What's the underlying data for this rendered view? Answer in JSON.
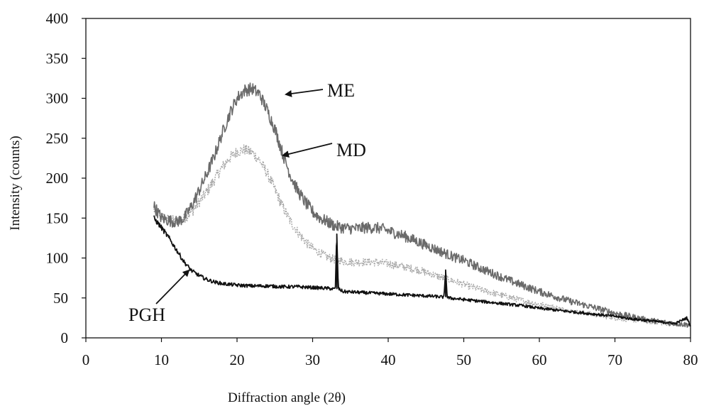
{
  "chart_data": {
    "type": "line",
    "title": "",
    "xlabel": "Diffraction angle (2θ)",
    "ylabel": "Intensity (counts)",
    "xlim": [
      0,
      80
    ],
    "ylim": [
      0,
      400
    ],
    "xticks": [
      0,
      10,
      20,
      30,
      40,
      50,
      60,
      70,
      80
    ],
    "yticks": [
      0,
      50,
      100,
      150,
      200,
      250,
      300,
      350,
      400
    ],
    "x_tick_labels": [
      "0",
      "10",
      "20",
      "30",
      "40",
      "50",
      "60",
      "70",
      "80"
    ],
    "y_tick_labels": [
      "0",
      "50",
      "100",
      "150",
      "200",
      "250",
      "300",
      "350",
      "400"
    ],
    "grid": false,
    "legend": "none",
    "series": [
      {
        "name": "ME",
        "color": "#6a6a6a",
        "style": "noisy-solid",
        "x": [
          9,
          10,
          11,
          12,
          13,
          14,
          15,
          16,
          17,
          18,
          19,
          20,
          21,
          22,
          23,
          24,
          25,
          26,
          27,
          28,
          29,
          30,
          31,
          32,
          33,
          34,
          35,
          36,
          37,
          38,
          39,
          40,
          41,
          42,
          43,
          44,
          45,
          46,
          47,
          48,
          49,
          50,
          52,
          54,
          56,
          58,
          60,
          62,
          64,
          66,
          68,
          70,
          72,
          74,
          76,
          78,
          80
        ],
        "y": [
          165,
          150,
          147,
          145,
          150,
          165,
          185,
          205,
          228,
          255,
          280,
          300,
          310,
          312,
          305,
          285,
          262,
          232,
          205,
          185,
          170,
          158,
          150,
          145,
          140,
          138,
          137,
          137,
          138,
          138,
          137,
          134,
          131,
          128,
          124,
          120,
          116,
          112,
          108,
          104,
          100,
          97,
          88,
          80,
          72,
          65,
          58,
          52,
          46,
          41,
          36,
          31,
          27,
          23,
          20,
          18,
          16
        ]
      },
      {
        "name": "MD",
        "color": "#a8a8a8",
        "style": "noisy-dotted",
        "x": [
          9,
          10,
          11,
          12,
          13,
          14,
          15,
          16,
          17,
          18,
          19,
          20,
          21,
          22,
          23,
          24,
          25,
          26,
          27,
          28,
          29,
          30,
          31,
          32,
          33,
          34,
          35,
          36,
          37,
          38,
          39,
          40,
          41,
          42,
          43,
          44,
          45,
          46,
          47,
          48,
          49,
          50,
          52,
          54,
          56,
          58,
          60,
          62,
          64,
          66,
          68,
          70,
          72,
          74,
          76,
          78,
          80
        ],
        "y": [
          160,
          152,
          148,
          146,
          150,
          158,
          170,
          183,
          198,
          213,
          225,
          233,
          236,
          232,
          222,
          206,
          186,
          165,
          147,
          133,
          121,
          112,
          106,
          101,
          98,
          96,
          95,
          95,
          95,
          95,
          94,
          93,
          91,
          89,
          87,
          85,
          82,
          79,
          76,
          73,
          70,
          67,
          61,
          56,
          51,
          46,
          42,
          38,
          34,
          31,
          28,
          25,
          23,
          21,
          19,
          17,
          16
        ]
      },
      {
        "name": "PGH",
        "color": "#111111",
        "style": "noisy-solid",
        "x": [
          9,
          10,
          11,
          12,
          13,
          14,
          15,
          16,
          17,
          18,
          20,
          22,
          24,
          26,
          28,
          30,
          32,
          33,
          33.2,
          33.4,
          34,
          36,
          38,
          40,
          42,
          44,
          46,
          47.4,
          47.6,
          47.8,
          48,
          50,
          52,
          54,
          56,
          58,
          60,
          62,
          64,
          66,
          68,
          70,
          72,
          74,
          76,
          78,
          79.5,
          80
        ],
        "y": [
          150,
          138,
          125,
          110,
          95,
          84,
          78,
          73,
          70,
          68,
          66,
          65,
          65,
          64,
          64,
          63,
          62,
          61,
          130,
          62,
          58,
          57,
          56,
          55,
          54,
          53,
          52,
          51,
          85,
          51,
          50,
          48,
          46,
          44,
          42,
          40,
          37,
          35,
          33,
          31,
          29,
          27,
          24,
          22,
          20,
          18,
          25,
          15
        ]
      }
    ],
    "annotations": [
      {
        "text": "ME",
        "target": "ME"
      },
      {
        "text": "MD",
        "target": "MD"
      },
      {
        "text": "PGH",
        "target": "PGH"
      }
    ]
  }
}
